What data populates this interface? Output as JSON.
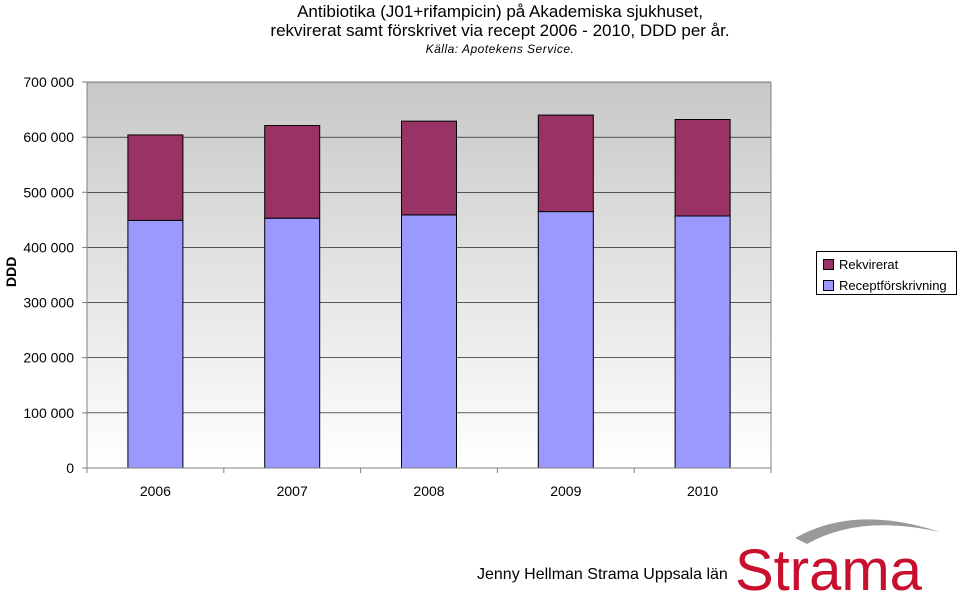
{
  "title_line1": "Antibiotika (J01+rifampicin) på Akademiska sjukhuset,",
  "title_line2": "rekvirerat samt förskrivet via recept 2006 - 2010, DDD per år.",
  "source": "Källa: Apotekens Service.",
  "footer": "Jenny Hellman Strama Uppsala län",
  "logo_text": "Strama",
  "colors": {
    "plot_gradient_top": "#c8c8c8",
    "plot_gradient_bottom": "#ffffff",
    "logo_red": "#c8102e",
    "logo_swoosh": "#999999"
  },
  "chart_data": {
    "type": "bar",
    "stacked": true,
    "ylabel": "DDD",
    "ylim": [
      0,
      700000
    ],
    "yticks": [
      0,
      100000,
      200000,
      300000,
      400000,
      500000,
      600000,
      700000
    ],
    "ytick_labels": [
      "0",
      "100 000",
      "200 000",
      "300 000",
      "400 000",
      "500 000",
      "600 000",
      "700 000"
    ],
    "categories": [
      "2006",
      "2007",
      "2008",
      "2009",
      "2010"
    ],
    "series": [
      {
        "name": "Receptförskrivning",
        "color": "#9999ff",
        "values": [
          449000,
          453000,
          459000,
          465000,
          457000
        ]
      },
      {
        "name": "Rekvirerat",
        "color": "#993366",
        "values": [
          155000,
          168000,
          170000,
          175000,
          175000
        ]
      }
    ],
    "grid": true,
    "legend": "right"
  }
}
